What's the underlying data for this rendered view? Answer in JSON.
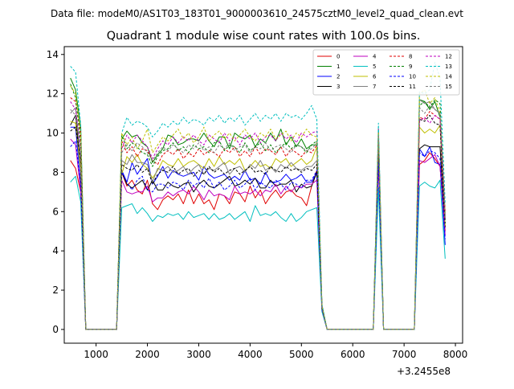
{
  "chart_data": {
    "type": "line",
    "suptitle": "Data file: modeM0/AS1T03_183T01_9000003610_24575cztM0_level2_quad_clean.evt",
    "title": "Quadrant 1 module wise count rates with 100.0s bins.",
    "xlabel": "",
    "ylabel": "",
    "x_offset_label": "+3.2455e8",
    "xlim": [
      380,
      8140
    ],
    "ylim": [
      -0.7,
      14.4
    ],
    "xticks": [
      1000,
      2000,
      3000,
      4000,
      5000,
      6000,
      7000,
      8000
    ],
    "yticks": [
      0,
      2,
      4,
      6,
      8,
      10,
      12,
      14
    ],
    "grid": false,
    "legend_position": "top-right",
    "x": [
      500,
      600,
      700,
      800,
      1400,
      1500,
      1600,
      1700,
      1800,
      1900,
      2000,
      2100,
      2200,
      2300,
      2400,
      2500,
      2600,
      2700,
      2800,
      2900,
      3000,
      3100,
      3200,
      3300,
      3400,
      3500,
      3600,
      3700,
      3800,
      3900,
      4000,
      4100,
      4200,
      4300,
      4400,
      4500,
      4600,
      4700,
      4800,
      4900,
      5000,
      5100,
      5200,
      5300,
      5400,
      5500,
      6400,
      6500,
      6600,
      6700,
      7200,
      7300,
      7400,
      7500,
      7600,
      7700,
      7800
    ],
    "series": [
      {
        "name": "0",
        "color": "#e00000",
        "dash": false,
        "values": [
          8.6,
          8.2,
          7.0,
          0,
          0,
          8.0,
          7.3,
          7.6,
          7.1,
          6.9,
          7.6,
          6.4,
          6.1,
          6.6,
          6.8,
          6.6,
          6.9,
          6.4,
          7.1,
          6.4,
          6.9,
          6.4,
          6.6,
          6.1,
          6.9,
          6.8,
          6.4,
          7.0,
          6.9,
          6.5,
          7.3,
          6.7,
          7.1,
          6.4,
          6.8,
          7.1,
          6.7,
          7.0,
          7.1,
          6.8,
          6.7,
          6.3,
          7.3,
          8.1,
          1.0,
          0,
          0,
          8.4,
          0,
          0,
          0,
          8.4,
          8.6,
          9.0,
          8.7,
          8.3,
          5.0
        ]
      },
      {
        "name": "1",
        "color": "#008000",
        "dash": false,
        "values": [
          12.8,
          12.2,
          10.3,
          0,
          0,
          9.7,
          10.1,
          9.8,
          9.9,
          9.5,
          9.3,
          8.5,
          8.9,
          9.2,
          9.9,
          9.8,
          9.4,
          9.5,
          9.7,
          9.7,
          9.6,
          10.0,
          9.6,
          9.3,
          9.8,
          9.8,
          9.2,
          10.0,
          9.8,
          9.7,
          9.9,
          9.3,
          9.7,
          9.5,
          10.0,
          9.6,
          10.2,
          9.4,
          9.8,
          9.3,
          9.7,
          9.2,
          9.4,
          9.4,
          1.2,
          0,
          0,
          10.0,
          0,
          0,
          0,
          11.7,
          11.6,
          11.2,
          11.6,
          10.8,
          5.6
        ]
      },
      {
        "name": "2",
        "color": "#0000ff",
        "dash": false,
        "values": [
          10.3,
          10.3,
          7.4,
          0,
          0,
          8.1,
          7.5,
          8.5,
          7.9,
          8.3,
          8.7,
          7.4,
          7.8,
          8.3,
          7.7,
          8.1,
          7.9,
          7.8,
          7.9,
          8.0,
          7.6,
          8.3,
          7.9,
          7.7,
          7.8,
          7.9,
          7.6,
          7.8,
          7.6,
          8.1,
          7.6,
          7.7,
          7.4,
          8.0,
          7.5,
          7.5,
          7.6,
          7.9,
          7.6,
          7.7,
          7.9,
          7.5,
          7.5,
          8.0,
          1.0,
          0,
          0,
          8.6,
          0,
          0,
          0,
          9.2,
          8.8,
          9.3,
          8.5,
          8.4,
          4.3
        ]
      },
      {
        "name": "3",
        "color": "#000000",
        "dash": false,
        "values": [
          10.4,
          10.9,
          8.2,
          0,
          0,
          8.0,
          7.4,
          7.2,
          7.4,
          7.6,
          7.1,
          7.6,
          7.1,
          7.1,
          7.5,
          7.3,
          7.2,
          7.4,
          7.5,
          7.0,
          7.4,
          7.6,
          7.3,
          7.2,
          7.4,
          7.6,
          7.8,
          7.3,
          7.4,
          7.6,
          7.4,
          7.7,
          7.2,
          7.2,
          7.6,
          7.3,
          7.4,
          7.4,
          7.6,
          7.0,
          7.4,
          7.2,
          7.3,
          8.0,
          1.1,
          0,
          0,
          8.8,
          0,
          0,
          0,
          9.2,
          9.4,
          9.3,
          9.3,
          9.3,
          5.2
        ]
      },
      {
        "name": "4",
        "color": "#bf00bf",
        "dash": false,
        "values": [
          9.7,
          9.4,
          7.0,
          0,
          0,
          7.6,
          7.0,
          6.9,
          7.0,
          7.0,
          7.3,
          6.5,
          6.7,
          6.7,
          7.0,
          6.8,
          7.0,
          7.1,
          6.9,
          7.3,
          7.0,
          6.6,
          7.1,
          6.8,
          6.9,
          6.8,
          6.6,
          7.3,
          6.9,
          7.0,
          6.9,
          7.1,
          6.8,
          7.1,
          7.0,
          7.4,
          6.9,
          7.3,
          7.0,
          7.3,
          7.2,
          7.4,
          7.4,
          7.6,
          1.0,
          0,
          0,
          8.4,
          0,
          0,
          0,
          8.6,
          8.5,
          8.7,
          8.9,
          8.3,
          4.8
        ]
      },
      {
        "name": "5",
        "color": "#00bfbf",
        "dash": false,
        "values": [
          7.5,
          7.8,
          6.5,
          0,
          0,
          6.2,
          6.3,
          6.4,
          5.9,
          6.2,
          5.9,
          5.5,
          5.8,
          5.7,
          5.9,
          5.8,
          5.9,
          5.6,
          6.0,
          5.7,
          5.8,
          5.9,
          5.6,
          5.9,
          5.6,
          5.7,
          5.9,
          5.6,
          5.8,
          6.0,
          5.5,
          6.3,
          5.8,
          5.9,
          5.8,
          6.0,
          5.7,
          5.5,
          5.9,
          5.5,
          5.7,
          6.0,
          6.1,
          6.2,
          0.9,
          0,
          0,
          7.2,
          0,
          0,
          0,
          7.3,
          7.5,
          7.3,
          7.2,
          7.6,
          3.6
        ]
      },
      {
        "name": "6",
        "color": "#bfbf00",
        "dash": false,
        "values": [
          10.6,
          10.5,
          8.1,
          0,
          0,
          7.9,
          8.8,
          8.5,
          8.9,
          8.4,
          8.2,
          7.7,
          8.1,
          8.6,
          8.4,
          8.3,
          8.7,
          8.3,
          8.5,
          8.6,
          8.4,
          8.2,
          8.7,
          8.3,
          8.8,
          8.4,
          8.6,
          8.4,
          8.7,
          8.1,
          8.3,
          8.6,
          8.3,
          8.4,
          8.2,
          8.7,
          8.5,
          8.7,
          8.3,
          8.5,
          8.7,
          8.4,
          8.6,
          9.3,
          1.1,
          0,
          0,
          9.8,
          0,
          0,
          0,
          10.3,
          10.0,
          10.2,
          10.0,
          10.4,
          5.3
        ]
      },
      {
        "name": "7",
        "color": "#7f7f7f",
        "dash": false,
        "values": [
          11.0,
          11.3,
          8.8,
          0,
          0,
          8.6,
          8.4,
          8.9,
          8.5,
          8.5,
          8.4,
          7.5,
          8.2,
          8.1,
          8.3,
          8.0,
          8.1,
          8.3,
          7.9,
          8.2,
          8.4,
          7.9,
          8.2,
          8.1,
          8.3,
          8.5,
          7.9,
          8.2,
          8.3,
          8.0,
          8.4,
          8.2,
          8.6,
          8.1,
          8.3,
          8.0,
          8.4,
          8.2,
          8.5,
          8.2,
          8.1,
          8.3,
          8.3,
          8.6,
          1.1,
          0,
          0,
          9.6,
          0,
          0,
          0,
          11.7,
          11.5,
          11.6,
          11.2,
          11.0,
          5.8
        ]
      },
      {
        "name": "8",
        "color": "#e00000",
        "dash": true,
        "values": [
          11.8,
          11.6,
          10.0,
          0,
          0,
          9.6,
          9.0,
          9.3,
          8.8,
          9.2,
          9.1,
          8.6,
          8.4,
          8.9,
          9.1,
          8.9,
          9.2,
          8.7,
          9.0,
          8.8,
          9.2,
          8.9,
          9.1,
          9.0,
          8.8,
          9.2,
          9.0,
          9.3,
          8.8,
          9.1,
          8.8,
          9.3,
          8.9,
          9.2,
          9.1,
          8.9,
          9.3,
          8.8,
          9.2,
          9.0,
          8.8,
          9.1,
          9.0,
          9.4,
          1.2,
          0,
          0,
          9.8,
          0,
          0,
          0,
          10.8,
          10.7,
          11.1,
          10.9,
          10.7,
          6.0
        ]
      },
      {
        "name": "9",
        "color": "#008000",
        "dash": true,
        "values": [
          12.5,
          11.8,
          9.5,
          0,
          0,
          9.9,
          9.2,
          9.5,
          9.3,
          9.0,
          8.9,
          8.3,
          8.8,
          9.1,
          9.2,
          9.5,
          9.1,
          9.3,
          9.0,
          9.4,
          9.2,
          9.3,
          9.0,
          9.5,
          9.6,
          9.1,
          9.4,
          9.3,
          9.0,
          9.5,
          9.1,
          9.3,
          9.5,
          9.1,
          9.4,
          9.0,
          9.3,
          9.5,
          9.2,
          9.4,
          9.3,
          9.0,
          9.4,
          9.6,
          1.2,
          0,
          0,
          10.2,
          0,
          0,
          0,
          11.4,
          11.6,
          11.3,
          11.7,
          11.5,
          5.8
        ]
      },
      {
        "name": "10",
        "color": "#0000ff",
        "dash": true,
        "values": [
          9.3,
          9.6,
          7.4,
          0,
          0,
          8.0,
          7.5,
          7.1,
          7.6,
          7.8,
          7.1,
          7.0,
          7.4,
          7.4,
          7.2,
          7.5,
          7.4,
          7.1,
          7.6,
          7.3,
          7.5,
          7.2,
          7.7,
          7.2,
          7.5,
          7.1,
          7.3,
          7.6,
          7.2,
          7.4,
          7.7,
          7.1,
          7.5,
          7.3,
          7.2,
          7.6,
          7.4,
          7.1,
          7.5,
          7.4,
          7.2,
          7.6,
          7.6,
          8.1,
          1.0,
          0,
          0,
          8.5,
          0,
          0,
          0,
          9.0,
          8.8,
          9.1,
          9.0,
          8.7,
          4.6
        ]
      },
      {
        "name": "11",
        "color": "#000000",
        "dash": true,
        "values": [
          10.1,
          10.3,
          8.6,
          0,
          0,
          8.4,
          8.2,
          8.1,
          8.4,
          8.0,
          8.2,
          7.4,
          7.9,
          8.1,
          8.0,
          8.3,
          7.9,
          8.1,
          8.2,
          7.8,
          8.1,
          7.9,
          8.3,
          8.0,
          8.2,
          7.9,
          8.1,
          8.2,
          7.9,
          8.1,
          8.3,
          8.0,
          8.1,
          7.9,
          8.3,
          8.1,
          8.0,
          8.3,
          8.1,
          8.2,
          8.0,
          8.2,
          8.1,
          8.4,
          1.1,
          0,
          0,
          9.6,
          0,
          0,
          0,
          10.7,
          10.6,
          10.9,
          10.5,
          10.4,
          5.4
        ]
      },
      {
        "name": "12",
        "color": "#bf00bf",
        "dash": true,
        "values": [
          11.6,
          11.2,
          9.2,
          0,
          0,
          9.2,
          9.9,
          9.5,
          9.9,
          9.6,
          9.3,
          8.7,
          9.2,
          9.6,
          9.4,
          9.8,
          9.5,
          9.8,
          9.6,
          9.9,
          9.6,
          9.4,
          9.9,
          9.7,
          9.5,
          10.0,
          9.6,
          9.8,
          9.4,
          9.9,
          9.7,
          10.0,
          9.5,
          9.8,
          9.9,
          9.6,
          10.0,
          9.7,
          9.9,
          9.5,
          10.0,
          9.8,
          10.0,
          10.1,
          1.2,
          0,
          0,
          10.2,
          0,
          0,
          0,
          10.6,
          10.8,
          10.5,
          10.9,
          10.7,
          5.6
        ]
      },
      {
        "name": "13",
        "color": "#00bfbf",
        "dash": true,
        "values": [
          13.4,
          13.1,
          10.4,
          0,
          0,
          10.0,
          10.8,
          10.4,
          10.6,
          10.5,
          10.3,
          9.8,
          10.1,
          10.5,
          10.3,
          10.6,
          10.4,
          10.8,
          10.5,
          10.7,
          10.6,
          10.4,
          10.8,
          10.6,
          10.9,
          10.5,
          10.8,
          10.6,
          10.9,
          10.4,
          10.7,
          11.0,
          10.6,
          10.9,
          10.7,
          11.0,
          10.6,
          11.0,
          10.8,
          10.9,
          10.7,
          11.0,
          11.4,
          10.7,
          1.3,
          0,
          0,
          10.5,
          0,
          0,
          0,
          12.1,
          12.0,
          12.2,
          13.6,
          12.8,
          6.4
        ]
      },
      {
        "name": "14",
        "color": "#bfbf00",
        "dash": true,
        "values": [
          12.4,
          12.0,
          9.9,
          0,
          0,
          10.0,
          9.4,
          9.8,
          9.2,
          9.6,
          10.2,
          9.0,
          9.4,
          9.8,
          9.6,
          9.9,
          10.2,
          9.7,
          10.0,
          9.5,
          9.8,
          10.3,
          9.6,
          9.9,
          10.1,
          9.7,
          10.0,
          9.6,
          9.9,
          10.2,
          9.8,
          9.6,
          10.0,
          9.8,
          10.2,
          9.7,
          9.9,
          10.1,
          9.6,
          10.0,
          9.8,
          10.2,
          9.9,
          9.8,
          1.2,
          0,
          0,
          10.0,
          0,
          0,
          0,
          12.0,
          12.2,
          11.5,
          11.8,
          11.0,
          5.9
        ]
      },
      {
        "name": "15",
        "color": "#7f7f7f",
        "dash": true,
        "values": [
          11.2,
          10.9,
          9.0,
          0,
          0,
          9.0,
          9.4,
          9.1,
          9.5,
          9.3,
          9.0,
          8.6,
          9.0,
          9.3,
          9.1,
          9.4,
          9.2,
          9.0,
          9.4,
          9.2,
          9.5,
          9.1,
          9.3,
          9.0,
          9.4,
          9.2,
          9.5,
          9.1,
          9.3,
          9.4,
          9.0,
          9.3,
          9.2,
          9.5,
          9.1,
          9.3,
          9.4,
          9.2,
          9.0,
          9.4,
          9.3,
          9.1,
          9.2,
          9.5,
          1.1,
          0,
          0,
          9.9,
          0,
          0,
          0,
          11.3,
          11.0,
          11.4,
          11.2,
          11.0,
          5.7
        ]
      }
    ]
  }
}
